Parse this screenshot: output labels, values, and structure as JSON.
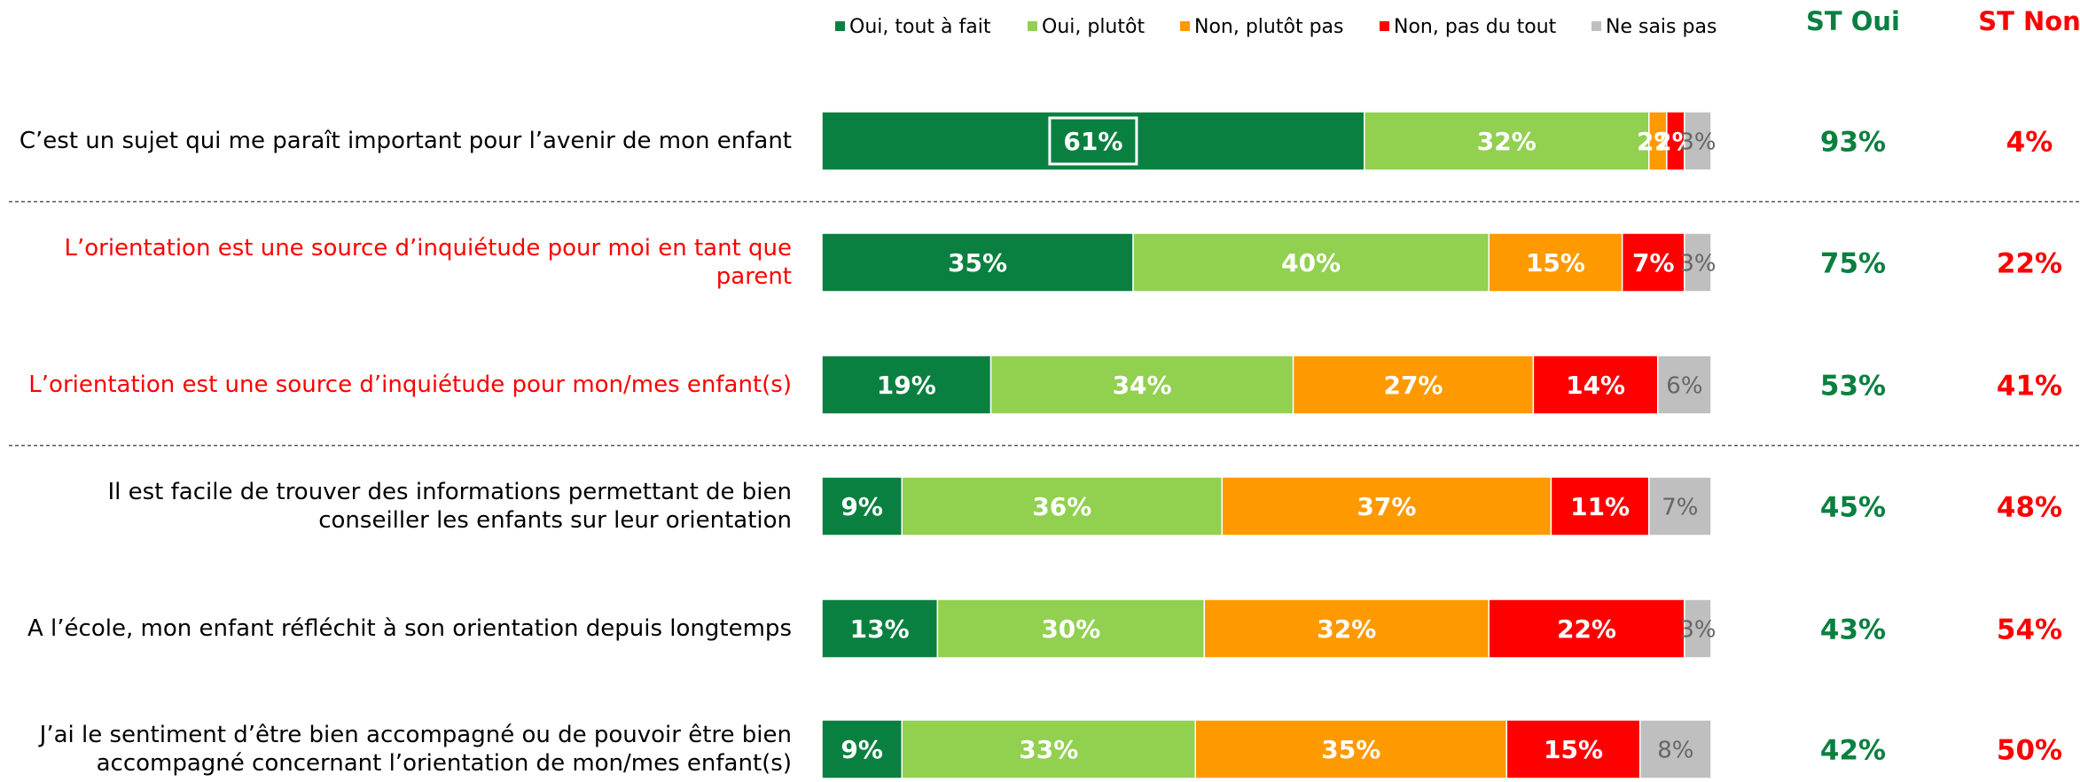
{
  "chart_data": {
    "type": "stacked-bar-horizontal",
    "categories": [
      "C’est un sujet qui me paraît important pour l’avenir de mon enfant",
      "L’orientation est une source d’inquiétude pour moi en tant que parent",
      "L’orientation est une source d’inquiétude pour mon/mes enfant(s)",
      "Il est facile de trouver des informations permettant de bien conseiller les enfants sur leur orientation",
      "A l’école, mon enfant réfléchit à son orientation depuis longtemps",
      "J’ai le sentiment d’être bien accompagné ou de pouvoir être bien accompagné concernant l’orientation de mon/mes enfant(s)"
    ],
    "category_colors": [
      "#000000",
      "#ff0000",
      "#ff0000",
      "#000000",
      "#000000",
      "#000000"
    ],
    "xlim": [
      0,
      100
    ],
    "series": [
      {
        "name": "Oui, tout à fait",
        "color": "#0a8040",
        "label_color": "#ffffff",
        "values": [
          61,
          35,
          19,
          9,
          13,
          9
        ],
        "value_labels": [
          "61%",
          "35%",
          "19%",
          "9%",
          "13%",
          "9%"
        ]
      },
      {
        "name": "Oui, plutôt",
        "color": "#92d050",
        "label_color": "#ffffff",
        "values": [
          32,
          40,
          34,
          36,
          30,
          33
        ],
        "value_labels": [
          "32%",
          "40%",
          "34%",
          "36%",
          "30%",
          "33%"
        ]
      },
      {
        "name": "Non, plutôt pas",
        "color": "#ff9900",
        "label_color": "#ffffff",
        "values": [
          2,
          15,
          27,
          37,
          32,
          35
        ],
        "value_labels": [
          "2%",
          "15%",
          "27%",
          "37%",
          "32%",
          "35%"
        ]
      },
      {
        "name": "Non, pas du tout",
        "color": "#ff0000",
        "label_color": "#ffffff",
        "values": [
          2,
          7,
          14,
          11,
          22,
          15
        ],
        "value_labels": [
          "2%",
          "7%",
          "14%",
          "11%",
          "22%",
          "15%"
        ]
      },
      {
        "name": "Ne sais pas",
        "color": "#bfbfbf",
        "label_color": "#666666",
        "values": [
          3,
          3,
          6,
          7,
          3,
          8
        ],
        "value_labels": [
          "3%",
          "3%",
          "6%",
          "7%",
          "3%",
          "8%"
        ]
      }
    ],
    "totals": [
      {
        "name": "ST Oui",
        "color": "#0a8040",
        "values": [
          93,
          75,
          53,
          45,
          43,
          42
        ],
        "value_labels": [
          "93%",
          "75%",
          "53%",
          "45%",
          "43%",
          "42%"
        ]
      },
      {
        "name": "ST Non",
        "color": "#ff0000",
        "values": [
          4,
          22,
          41,
          48,
          54,
          50
        ],
        "value_labels": [
          "4%",
          "22%",
          "41%",
          "48%",
          "54%",
          "50%"
        ]
      }
    ]
  }
}
